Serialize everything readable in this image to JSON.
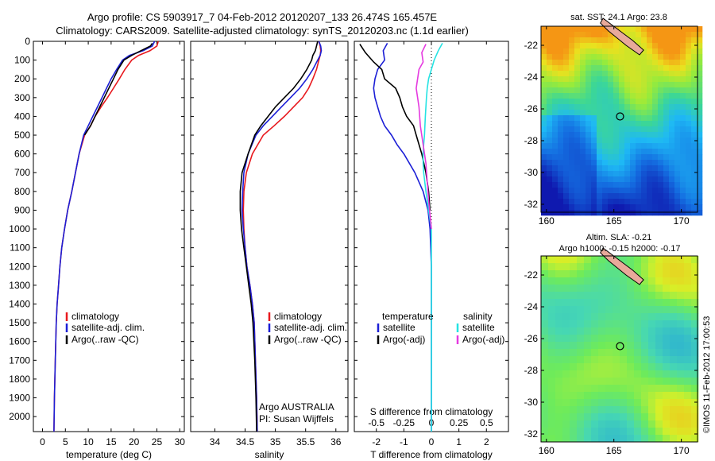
{
  "title_line1": "Argo profile: CS 5903917_7 04-Feb-2012 20120207_133 26.474S 165.457E",
  "title_line2": "Climatology: CARS2009. Satellite-adjusted climatology: synTS_20120203.nc (1.1d earlier)",
  "colors": {
    "climatology": "#e8191e",
    "satellite": "#1c1fd6",
    "argo": "#000000",
    "sat_salinity": "#25e3e3",
    "argo_salinity": "#e53ae0"
  },
  "depth_ticks": [
    0,
    100,
    200,
    300,
    400,
    500,
    600,
    700,
    800,
    900,
    1000,
    1100,
    1200,
    1300,
    1400,
    1500,
    1600,
    1700,
    1800,
    1900,
    2000
  ],
  "chart_data": [
    {
      "type": "line",
      "xlabel": "temperature (deg C)",
      "xlim": [
        -2,
        31
      ],
      "ylim": [
        0,
        2080
      ],
      "xticks": [
        0,
        5,
        10,
        15,
        20,
        25,
        30
      ],
      "legend": [
        "climatology",
        "satellite-adj. clim.",
        "Argo(..raw -QC)"
      ],
      "series": [
        {
          "name": "climatology",
          "color": "#e8191e",
          "x": [
            25.3,
            25.0,
            23.5,
            21.0,
            19.5,
            18.0,
            16.8,
            15.5,
            14.2,
            12.8,
            11.5,
            10.5,
            9.2,
            8.0,
            7.2,
            6.4,
            5.5,
            4.8,
            4.2,
            3.8,
            3.5,
            3.2,
            3.0,
            2.8,
            2.6,
            2.5
          ],
          "y": [
            0,
            25,
            50,
            75,
            100,
            150,
            200,
            250,
            300,
            350,
            400,
            450,
            500,
            600,
            700,
            800,
            900,
            1000,
            1100,
            1200,
            1300,
            1400,
            1500,
            1700,
            1900,
            2080
          ]
        },
        {
          "name": "satellite-adj. clim.",
          "color": "#1c1fd6",
          "x": [
            24.5,
            24.0,
            22.0,
            19.0,
            17.5,
            16.2,
            15.0,
            14.0,
            13.0,
            12.0,
            11.0,
            10.0,
            9.0,
            8.0,
            7.2,
            6.4,
            5.5,
            4.8,
            4.2,
            3.8,
            3.5,
            3.2,
            3.0,
            2.8,
            2.6,
            2.5
          ],
          "y": [
            0,
            25,
            50,
            75,
            100,
            150,
            200,
            250,
            300,
            350,
            400,
            450,
            500,
            600,
            700,
            800,
            900,
            1000,
            1100,
            1200,
            1300,
            1400,
            1500,
            1700,
            1900,
            2080
          ]
        },
        {
          "name": "Argo(..raw -QC)",
          "color": "#000000",
          "x": [
            24.0,
            23.6,
            21.5,
            19.5,
            17.8,
            16.5,
            15.5,
            14.5,
            13.5,
            12.5,
            11.5,
            10.5,
            9.2
          ],
          "y": [
            10,
            25,
            50,
            75,
            100,
            150,
            200,
            250,
            300,
            350,
            400,
            450,
            500
          ]
        }
      ]
    },
    {
      "type": "line",
      "xlabel": "salinity",
      "xlim": [
        33.6,
        36.2
      ],
      "ylim": [
        0,
        2080
      ],
      "xticks": [
        34,
        34.5,
        35,
        35.5,
        36
      ],
      "legend": [
        "climatology",
        "satellite-adj. clim.",
        "Argo(..raw -QC)"
      ],
      "annotation": [
        "Argo AUSTRALIA",
        "PI: Susan Wijffels"
      ],
      "series": [
        {
          "name": "climatology",
          "color": "#e8191e",
          "x": [
            35.72,
            35.74,
            35.75,
            35.74,
            35.72,
            35.68,
            35.62,
            35.55,
            35.45,
            35.3,
            35.15,
            34.98,
            34.8,
            34.62,
            34.52,
            34.48,
            34.47,
            34.48,
            34.5,
            34.53,
            34.58,
            34.62,
            34.65,
            34.67,
            34.69,
            34.7
          ],
          "y": [
            0,
            25,
            50,
            75,
            100,
            150,
            200,
            250,
            300,
            350,
            400,
            450,
            500,
            600,
            700,
            800,
            900,
            1000,
            1100,
            1200,
            1300,
            1400,
            1500,
            1700,
            1900,
            2080
          ]
        },
        {
          "name": "satellite-adj. clim.",
          "color": "#1c1fd6",
          "x": [
            35.72,
            35.75,
            35.76,
            35.74,
            35.7,
            35.62,
            35.52,
            35.4,
            35.25,
            35.1,
            34.95,
            34.8,
            34.68,
            34.55,
            34.48,
            34.46,
            34.45,
            34.47,
            34.5,
            34.53,
            34.58,
            34.62,
            34.65,
            34.67,
            34.69,
            34.7
          ],
          "y": [
            0,
            25,
            50,
            75,
            100,
            150,
            200,
            250,
            300,
            350,
            400,
            450,
            500,
            600,
            700,
            800,
            900,
            1000,
            1100,
            1200,
            1300,
            1400,
            1500,
            1700,
            1900,
            2080
          ]
        },
        {
          "name": "Argo(..raw -QC)",
          "color": "#000000",
          "x": [
            35.7,
            35.68,
            35.66,
            35.62,
            35.6,
            35.52,
            35.42,
            35.3,
            35.15,
            35.0,
            34.88,
            34.76,
            34.66,
            34.55,
            34.45,
            34.42,
            34.42,
            34.44,
            34.48,
            34.52,
            34.56,
            34.6,
            34.63,
            34.66,
            34.68,
            34.69
          ],
          "y": [
            0,
            25,
            50,
            75,
            100,
            150,
            200,
            250,
            300,
            350,
            400,
            450,
            500,
            600,
            700,
            800,
            900,
            1000,
            1100,
            1200,
            1300,
            1400,
            1500,
            1700,
            1900,
            2080
          ]
        }
      ]
    },
    {
      "type": "line",
      "xlabel": "T difference from climatology",
      "xlabel_top": "S difference from climatology",
      "xlim": [
        -2.8,
        2.8
      ],
      "ylim": [
        0,
        2080
      ],
      "xticks": [
        -2,
        -1,
        0,
        1,
        2
      ],
      "xticks_s": [
        -0.5,
        -0.25,
        0,
        0.25,
        0.5
      ],
      "legend": [
        "temperature",
        "satellite",
        "Argo(-adj)",
        "salinity",
        "satellite",
        "Argo(-adj)"
      ],
      "series": [
        {
          "name": "satellite",
          "color": "#1c1fd6",
          "x": [
            -1.6,
            -1.75,
            -1.7,
            -1.95,
            -2.05,
            -2.1,
            -2.05,
            -1.95,
            -1.85,
            -1.7,
            -1.45,
            -1.25,
            -1.0,
            -0.6,
            -0.3,
            -0.12,
            -0.05,
            0,
            0,
            0
          ],
          "y": [
            10,
            50,
            100,
            150,
            200,
            250,
            300,
            350,
            400,
            450,
            500,
            550,
            600,
            700,
            800,
            900,
            1000,
            1200,
            1600,
            2080
          ]
        },
        {
          "name": "Argo(-adj)",
          "color": "#000000",
          "x": [
            -2.6,
            -2.4,
            -2.1,
            -1.8,
            -1.7,
            -1.3,
            -1.15,
            -1.05,
            -0.9,
            -0.65,
            -0.55,
            -0.35,
            -0.2,
            -0.1,
            -0.05
          ],
          "y": [
            15,
            60,
            110,
            150,
            200,
            250,
            300,
            350,
            400,
            450,
            500,
            600,
            700,
            800,
            900
          ]
        },
        {
          "name": "satellite",
          "color": "#25e3e3",
          "x": [
            0.4,
            0.25,
            0.1,
            0,
            -0.1,
            -0.15,
            -0.18,
            -0.22,
            -0.25,
            -0.28,
            -0.3,
            -0.3,
            -0.28,
            -0.2,
            -0.1,
            0,
            0,
            0
          ],
          "y": [
            10,
            50,
            100,
            150,
            200,
            250,
            300,
            400,
            500,
            550,
            600,
            650,
            700,
            800,
            900,
            1000,
            1500,
            2080
          ]
        },
        {
          "name": "Argo(-adj)",
          "color": "#e53ae0",
          "x": [
            -0.2,
            -0.35,
            -0.3,
            -0.45,
            -0.55,
            -0.45,
            -0.4,
            -0.3,
            -0.2,
            -0.15,
            -0.1,
            0
          ],
          "y": [
            15,
            60,
            110,
            150,
            250,
            350,
            450,
            550,
            650,
            750,
            850,
            1000
          ]
        }
      ]
    },
    {
      "type": "heatmap",
      "title": "sat. SST: 24.1  Argo: 23.8",
      "xlim": [
        159.6,
        171.2
      ],
      "ylim": [
        -32.5,
        -20.8
      ],
      "xticks": [
        160,
        165,
        170
      ],
      "yticks": [
        -22,
        -24,
        -26,
        -28,
        -30,
        -32
      ],
      "marker": {
        "lon": 165.457,
        "lat": -26.474
      }
    },
    {
      "type": "heatmap",
      "title": "Altim. SLA: -0.21",
      "subtitle": "Argo h1000: -0.15  h2000: -0.17",
      "xlim": [
        159.6,
        171.2
      ],
      "ylim": [
        -32.5,
        -20.8
      ],
      "xticks": [
        160,
        165,
        170
      ],
      "yticks": [
        -22,
        -24,
        -26,
        -28,
        -30,
        -32
      ],
      "marker": {
        "lon": 165.457,
        "lat": -26.474
      }
    }
  ],
  "copyright": "©IMOS 11-Feb-2012 17:00:53"
}
